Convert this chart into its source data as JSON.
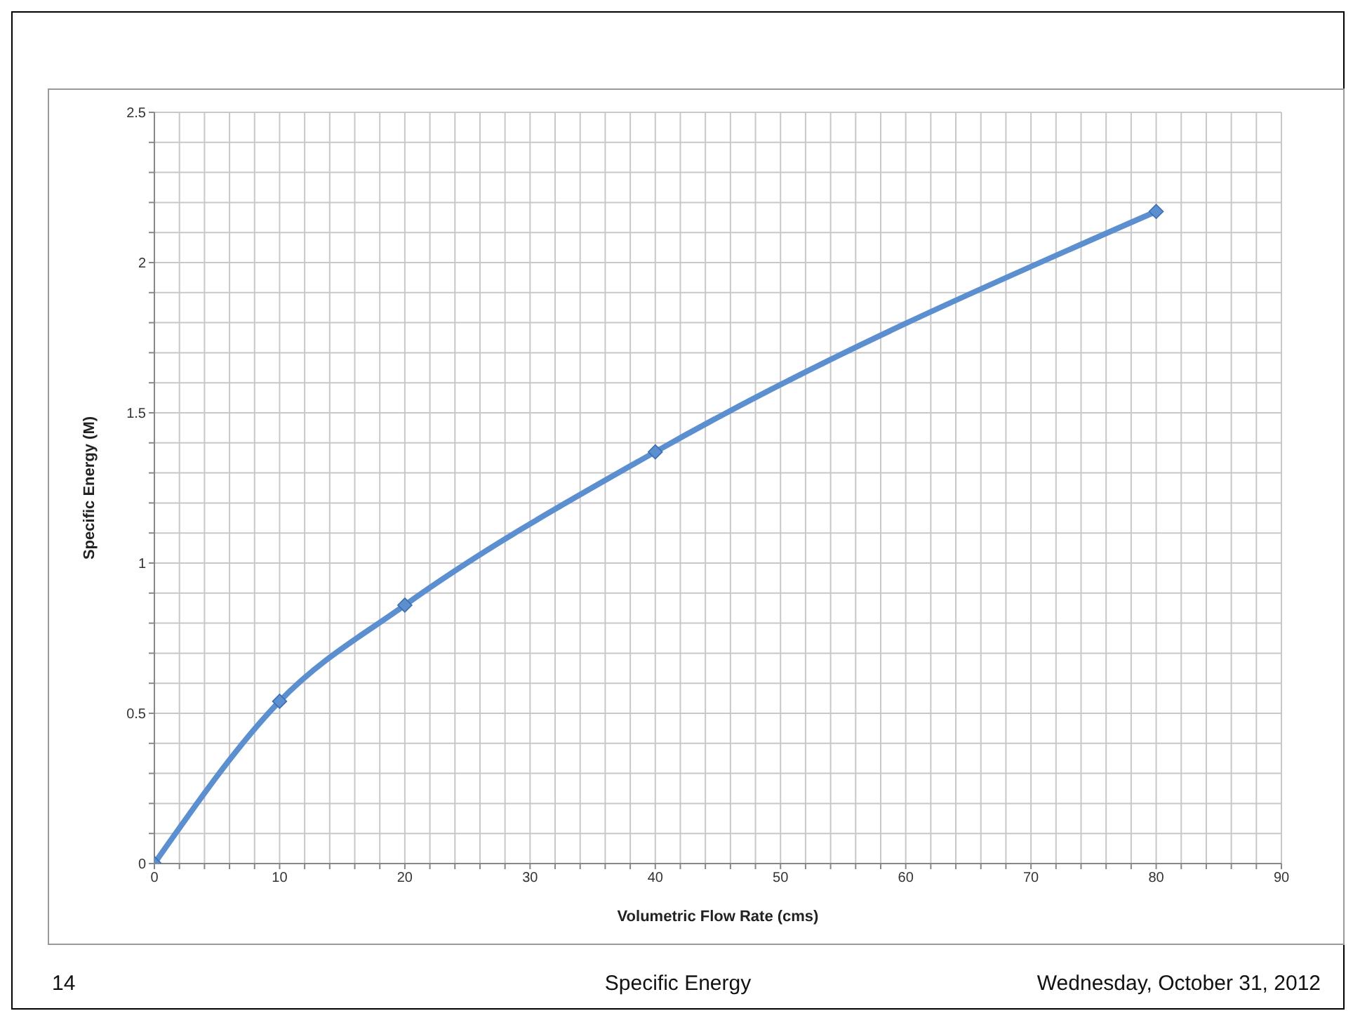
{
  "chart_data": {
    "type": "line",
    "xlabel": "Volumetric Flow Rate (cms)",
    "ylabel": "Specific Energy (M)",
    "x": [
      0,
      10,
      20,
      40,
      80
    ],
    "series": [
      {
        "color": "#5b8fd0",
        "values": [
          0,
          0.54,
          0.86,
          1.37,
          2.17
        ]
      }
    ],
    "xlim": [
      0,
      90
    ],
    "ylim": [
      0,
      2.5
    ],
    "xticks": [
      0,
      {
        "value": 2,
        "label": null
      },
      {
        "value": 4,
        "label": null
      },
      {
        "value": 6,
        "label": null
      },
      {
        "value": 8,
        "label": null
      },
      10,
      {
        "value": 12,
        "label": null
      },
      {
        "value": 14,
        "label": null
      },
      {
        "value": 16,
        "label": null
      },
      {
        "value": 18,
        "label": null
      },
      20,
      {
        "value": 22,
        "label": null
      },
      {
        "value": 24,
        "label": null
      },
      {
        "value": 26,
        "label": null
      },
      {
        "value": 28,
        "label": null
      },
      30,
      {
        "value": 32,
        "label": null
      },
      {
        "value": 34,
        "label": null
      },
      {
        "value": 36,
        "label": null
      },
      {
        "value": 38,
        "label": null
      },
      40,
      {
        "value": 42,
        "label": null
      },
      {
        "value": 44,
        "label": null
      },
      {
        "value": 46,
        "label": null
      },
      {
        "value": 48,
        "label": null
      },
      50,
      {
        "value": 52,
        "label": null
      },
      {
        "value": 54,
        "label": null
      },
      {
        "value": 56,
        "label": null
      },
      {
        "value": 58,
        "label": null
      },
      60,
      {
        "value": 62,
        "label": null
      },
      {
        "value": 64,
        "label": null
      },
      {
        "value": 66,
        "label": null
      },
      {
        "value": 68,
        "label": null
      },
      70,
      {
        "value": 72,
        "label": null
      },
      {
        "value": 74,
        "label": null
      },
      {
        "value": 76,
        "label": null
      },
      {
        "value": 78,
        "label": null
      },
      80,
      {
        "value": 82,
        "label": null
      },
      {
        "value": 84,
        "label": null
      },
      {
        "value": 86,
        "label": null
      },
      {
        "value": 88,
        "label": null
      },
      90
    ],
    "yticks": [
      0,
      {
        "value": 0.1,
        "label": null
      },
      {
        "value": 0.2,
        "label": null
      },
      {
        "value": 0.3,
        "label": null
      },
      {
        "value": 0.4,
        "label": null
      },
      0.5,
      {
        "value": 0.6,
        "label": null
      },
      {
        "value": 0.7,
        "label": null
      },
      {
        "value": 0.8,
        "label": null
      },
      {
        "value": 0.9,
        "label": null
      },
      1,
      {
        "value": 1.1,
        "label": null
      },
      {
        "value": 1.2,
        "label": null
      },
      {
        "value": 1.3,
        "label": null
      },
      {
        "value": 1.4,
        "label": null
      },
      1.5,
      {
        "value": 1.6,
        "label": null
      },
      {
        "value": 1.7,
        "label": null
      },
      {
        "value": 1.8,
        "label": null
      },
      {
        "value": 1.9,
        "label": null
      },
      2,
      {
        "value": 2.1,
        "label": null
      },
      {
        "value": 2.2,
        "label": null
      },
      {
        "value": 2.3,
        "label": null
      },
      {
        "value": 2.4,
        "label": null
      },
      2.5
    ],
    "grid": true,
    "legend": false,
    "marker": "diamond",
    "line_style": "solid",
    "annotations": [
      "14",
      "Specific Energy",
      "Wednesday, October 31, 2012"
    ]
  }
}
